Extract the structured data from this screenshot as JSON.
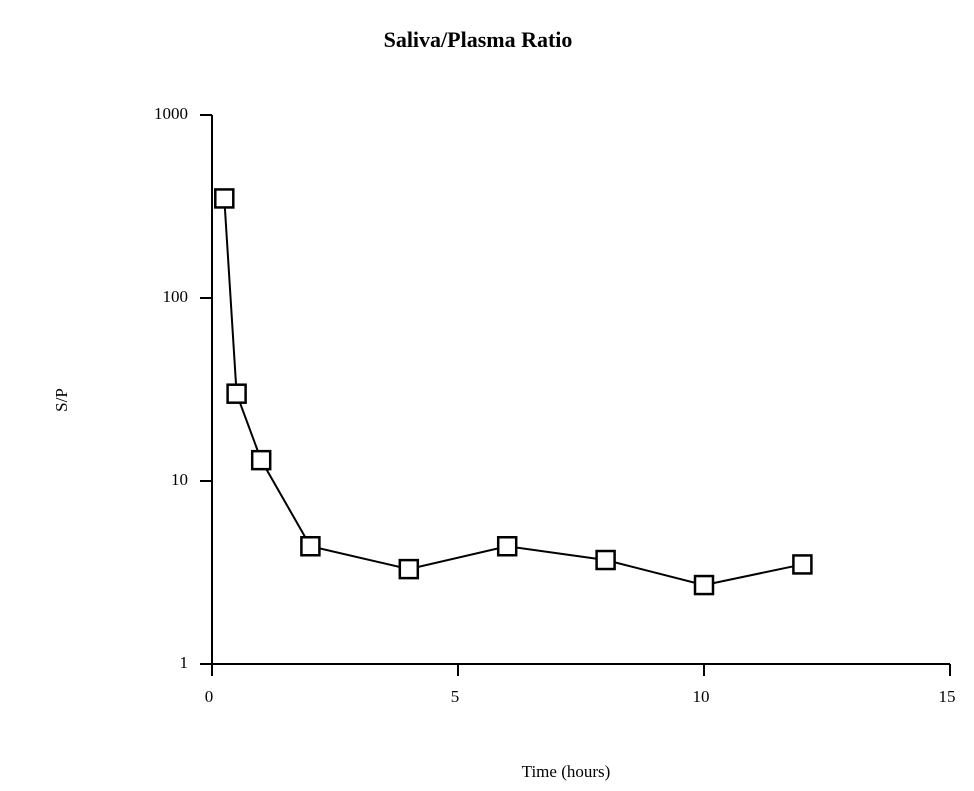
{
  "chart_data": {
    "type": "line",
    "title": "Saliva/Plasma Ratio",
    "x_label": "Time (hours)",
    "y_label": "S/P",
    "y_scale": "log",
    "xlim": [
      0,
      15
    ],
    "xticks": [
      0,
      5,
      10,
      15
    ],
    "ylim": [
      1,
      1000
    ],
    "yticks": [
      1,
      10,
      100,
      1000
    ],
    "series": [
      {
        "color": "#000000",
        "marker": "square",
        "x": [
          0.25,
          0.5,
          1,
          2,
          4,
          6,
          8,
          10,
          12
        ],
        "values": [
          350,
          30,
          13,
          4.4,
          3.3,
          4.4,
          3.7,
          2.7,
          3.5
        ]
      }
    ]
  }
}
